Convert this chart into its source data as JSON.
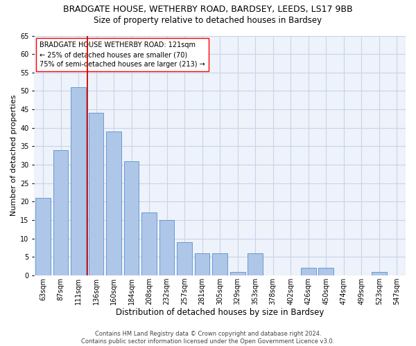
{
  "title": "BRADGATE HOUSE, WETHERBY ROAD, BARDSEY, LEEDS, LS17 9BB",
  "subtitle": "Size of property relative to detached houses in Bardsey",
  "xlabel": "Distribution of detached houses by size in Bardsey",
  "ylabel": "Number of detached properties",
  "categories": [
    "63sqm",
    "87sqm",
    "111sqm",
    "136sqm",
    "160sqm",
    "184sqm",
    "208sqm",
    "232sqm",
    "257sqm",
    "281sqm",
    "305sqm",
    "329sqm",
    "353sqm",
    "378sqm",
    "402sqm",
    "426sqm",
    "450sqm",
    "474sqm",
    "499sqm",
    "523sqm",
    "547sqm"
  ],
  "values": [
    21,
    34,
    51,
    44,
    39,
    31,
    17,
    15,
    9,
    6,
    6,
    1,
    6,
    0,
    0,
    2,
    2,
    0,
    0,
    1,
    0
  ],
  "bar_color": "#aec6e8",
  "bar_edge_color": "#5b8fc9",
  "red_line_x": 2.5,
  "red_line_color": "#cc0000",
  "ylim": [
    0,
    65
  ],
  "yticks": [
    0,
    5,
    10,
    15,
    20,
    25,
    30,
    35,
    40,
    45,
    50,
    55,
    60,
    65
  ],
  "annotation_text": "BRADGATE HOUSE WETHERBY ROAD: 121sqm\n← 25% of detached houses are smaller (70)\n75% of semi-detached houses are larger (213) →",
  "footer_text": "Contains HM Land Registry data © Crown copyright and database right 2024.\nContains public sector information licensed under the Open Government Licence v3.0.",
  "grid_color": "#c8d4e8",
  "background_color": "#eef2fa",
  "title_fontsize": 9,
  "subtitle_fontsize": 8.5,
  "axis_label_fontsize": 8,
  "tick_fontsize": 7,
  "annotation_fontsize": 7,
  "footer_fontsize": 6
}
